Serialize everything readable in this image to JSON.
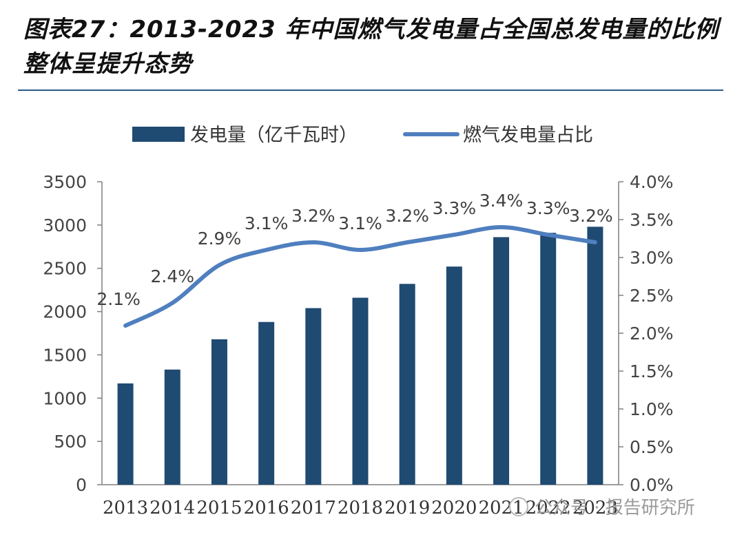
{
  "title": "图表27：2013-2023 年中国燃气发电量占全国总发电量的比例整体呈提升态势",
  "watermark": "公众号 · 报告研究所",
  "colors": {
    "bar": "#1f4a72",
    "line": "#4f7fbf",
    "rule": "#2a5a8c"
  },
  "chart_data": {
    "type": "bar",
    "categories": [
      "2013",
      "2014",
      "2015",
      "2016",
      "2017",
      "2018",
      "2019",
      "2020",
      "2021",
      "2022",
      "2023"
    ],
    "series": [
      {
        "name": "发电量（亿千瓦时）",
        "type": "bar",
        "axis": "left",
        "values": [
          1170,
          1330,
          1680,
          1880,
          2040,
          2160,
          2320,
          2520,
          2860,
          2910,
          2980
        ]
      },
      {
        "name": "燃气发电量占比",
        "type": "line",
        "axis": "right",
        "values": [
          2.1,
          2.4,
          2.9,
          3.1,
          3.2,
          3.1,
          3.2,
          3.3,
          3.4,
          3.3,
          3.2
        ],
        "labels": [
          "2.1%",
          "2.4%",
          "2.9%",
          "3.1%",
          "3.2%",
          "3.1%",
          "3.2%",
          "3.3%",
          "3.4%",
          "3.3%",
          "3.2%"
        ]
      }
    ],
    "y_left": {
      "range": [
        0,
        3500
      ],
      "ticks": [
        "0",
        "500",
        "1000",
        "1500",
        "2000",
        "2500",
        "3000",
        "3500"
      ]
    },
    "y_right": {
      "range": [
        0,
        4
      ],
      "ticks": [
        "0.0%",
        "0.5%",
        "1.0%",
        "1.5%",
        "2.0%",
        "2.5%",
        "3.0%",
        "3.5%",
        "4.0%"
      ]
    },
    "grid": false,
    "legend": "top"
  }
}
